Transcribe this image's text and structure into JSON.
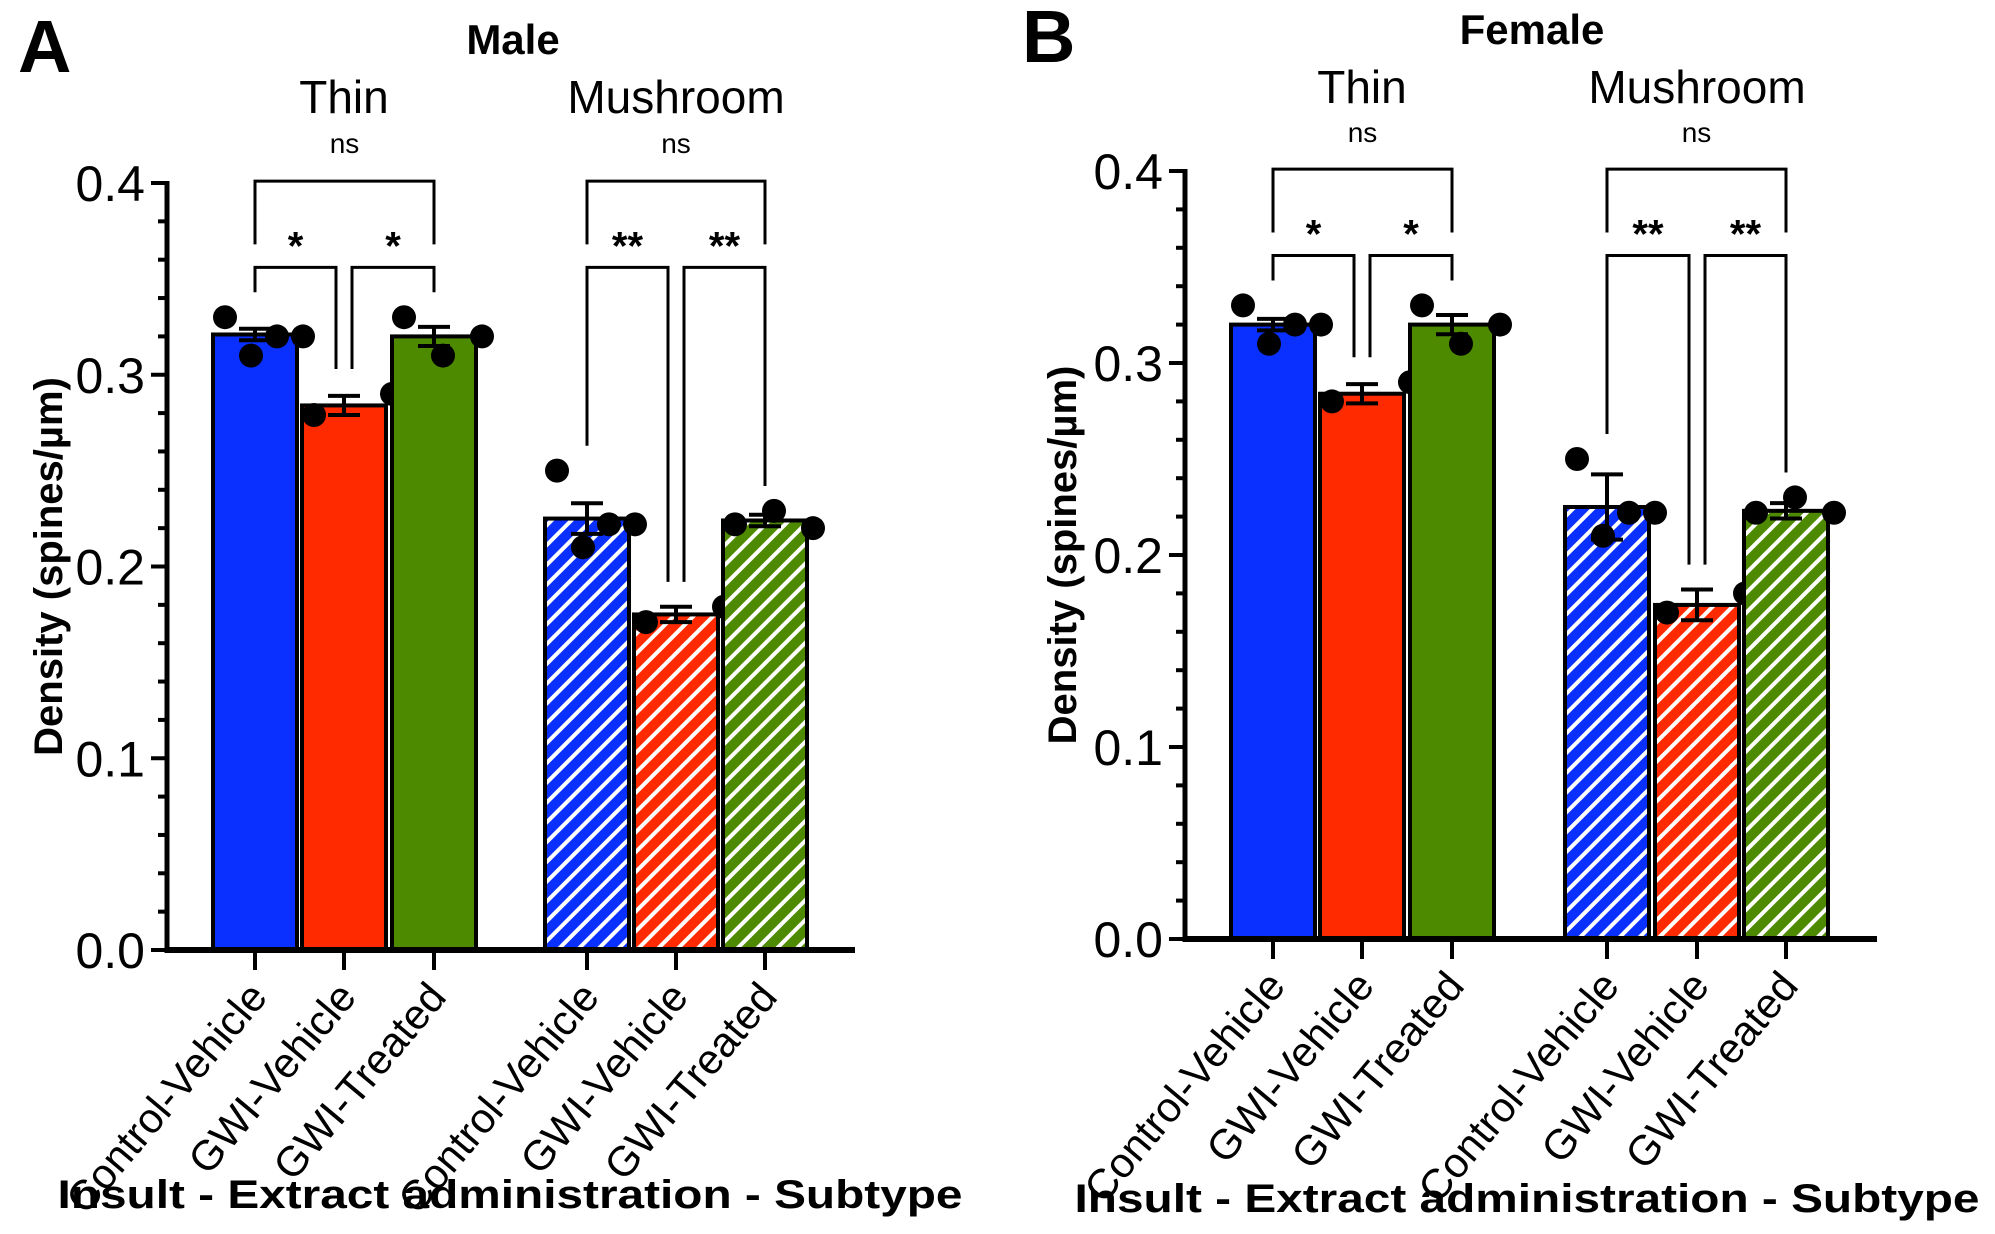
{
  "colors": {
    "blue": "#0a30ff",
    "red": "#ff2a00",
    "green": "#4d8a00",
    "hatch": "#ffffff"
  },
  "chart_data": [
    {
      "type": "bar",
      "panel_label": "A",
      "title": "Male",
      "ylabel": "Density (spines/µm)",
      "xlabel": "Insult - Extract administration - Subtype",
      "ylim": [
        0,
        0.4
      ],
      "yticks": [
        "0.0",
        "0.1",
        "0.2",
        "0.3",
        "0.4"
      ],
      "groups": [
        {
          "name": "Thin",
          "hatched": false,
          "bars": [
            {
              "category": "Control-Vehicle",
              "color": "blue",
              "mean": 0.321,
              "sem": 0.003,
              "points": [
                0.33,
                0.31,
                0.32,
                0.32
              ]
            },
            {
              "category": "GWI-Vehicle",
              "color": "red",
              "mean": 0.284,
              "sem": 0.005,
              "points": [
                0.279,
                0.29
              ]
            },
            {
              "category": "GWI-Treated",
              "color": "green",
              "mean": 0.32,
              "sem": 0.005,
              "points": [
                0.33,
                0.31,
                0.32
              ]
            }
          ],
          "comparisons": [
            {
              "pair": [
                0,
                2
              ],
              "label": "ns"
            },
            {
              "pair": [
                0,
                1
              ],
              "label": "*"
            },
            {
              "pair": [
                1,
                2
              ],
              "label": "*"
            }
          ]
        },
        {
          "name": "Mushroom",
          "hatched": true,
          "bars": [
            {
              "category": "Control-Vehicle",
              "color": "blue",
              "mean": 0.225,
              "sem": 0.008,
              "points": [
                0.25,
                0.21,
                0.222,
                0.222
              ]
            },
            {
              "category": "GWI-Vehicle",
              "color": "red",
              "mean": 0.175,
              "sem": 0.004,
              "points": [
                0.171,
                0.179
              ]
            },
            {
              "category": "GWI-Treated",
              "color": "green",
              "mean": 0.224,
              "sem": 0.003,
              "points": [
                0.222,
                0.229,
                0.22
              ]
            }
          ],
          "comparisons": [
            {
              "pair": [
                0,
                2
              ],
              "label": "ns"
            },
            {
              "pair": [
                0,
                1
              ],
              "label": "**"
            },
            {
              "pair": [
                1,
                2
              ],
              "label": "**"
            }
          ]
        }
      ]
    },
    {
      "type": "bar",
      "panel_label": "B",
      "title": "Female",
      "ylabel": "Density (spines/µm)",
      "xlabel": "Insult - Extract administration - Subtype",
      "ylim": [
        0,
        0.4
      ],
      "yticks": [
        "0.0",
        "0.1",
        "0.2",
        "0.3",
        "0.4"
      ],
      "groups": [
        {
          "name": "Thin",
          "hatched": false,
          "bars": [
            {
              "category": "Control-Vehicle",
              "color": "blue",
              "mean": 0.32,
              "sem": 0.003,
              "points": [
                0.33,
                0.31,
                0.32,
                0.32
              ]
            },
            {
              "category": "GWI-Vehicle",
              "color": "red",
              "mean": 0.284,
              "sem": 0.005,
              "points": [
                0.28,
                0.29
              ]
            },
            {
              "category": "GWI-Treated",
              "color": "green",
              "mean": 0.32,
              "sem": 0.005,
              "points": [
                0.33,
                0.31,
                0.32
              ]
            }
          ],
          "comparisons": [
            {
              "pair": [
                0,
                2
              ],
              "label": "ns"
            },
            {
              "pair": [
                0,
                1
              ],
              "label": "*"
            },
            {
              "pair": [
                1,
                2
              ],
              "label": "*"
            }
          ]
        },
        {
          "name": "Mushroom",
          "hatched": true,
          "bars": [
            {
              "category": "Control-Vehicle",
              "color": "blue",
              "mean": 0.225,
              "sem": 0.017,
              "points": [
                0.25,
                0.21,
                0.222,
                0.222
              ]
            },
            {
              "category": "GWI-Vehicle",
              "color": "red",
              "mean": 0.174,
              "sem": 0.008,
              "points": [
                0.17,
                0.18
              ]
            },
            {
              "category": "GWI-Treated",
              "color": "green",
              "mean": 0.223,
              "sem": 0.004,
              "points": [
                0.222,
                0.23,
                0.222
              ]
            }
          ],
          "comparisons": [
            {
              "pair": [
                0,
                2
              ],
              "label": "ns"
            },
            {
              "pair": [
                0,
                1
              ],
              "label": "**"
            },
            {
              "pair": [
                1,
                2
              ],
              "label": "**"
            }
          ]
        }
      ]
    }
  ]
}
